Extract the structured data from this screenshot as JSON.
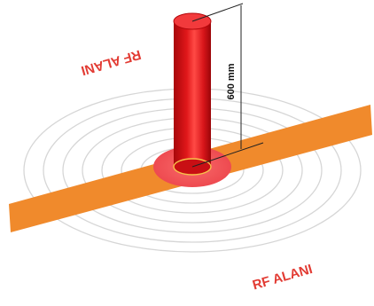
{
  "labels": {
    "rf_top": "RF ALANI",
    "rf_bottom": "RF ALANI",
    "dimension": "600 mm"
  },
  "colors": {
    "rf_text": "#e23b33",
    "ring_stroke": "#d9d9d9",
    "strip": "#f08a2c",
    "base_disc": "#f0565b",
    "cylinder_dark": "#b0080b",
    "cylinder_mid": "#e0171a",
    "cylinder_light": "#ff4a45",
    "cylinder_top": "#f4383a",
    "dimension_line": "#222222"
  },
  "icons": {
    "pole": "red-cylinder-antenna-icon",
    "waves": "concentric-rf-rings"
  }
}
